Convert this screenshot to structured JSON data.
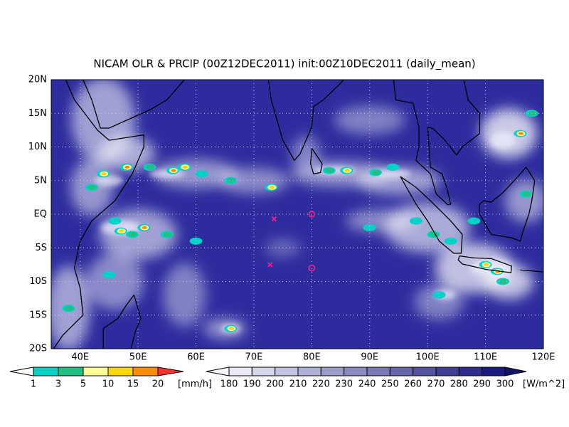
{
  "title": "NICAM OLR & PRCIP (00Z12DEC2011) init:00Z10DEC2011 (daily_mean)",
  "lat_labels": [
    "20N",
    "15N",
    "10N",
    "5N",
    "EQ",
    "5S",
    "10S",
    "15S",
    "20S"
  ],
  "lon_labels": [
    "40E",
    "50E",
    "60E",
    "70E",
    "80E",
    "90E",
    "100E",
    "110E",
    "120E"
  ],
  "precip_legend": {
    "labels": [
      "1",
      "3",
      "5",
      "10",
      "15",
      "20"
    ],
    "unit": "[mm/h]"
  },
  "olr_legend": {
    "labels": [
      "180",
      "190",
      "200",
      "210",
      "220",
      "230",
      "240",
      "250",
      "260",
      "270",
      "280",
      "290",
      "300"
    ],
    "unit": "[W/m^2]"
  }
}
